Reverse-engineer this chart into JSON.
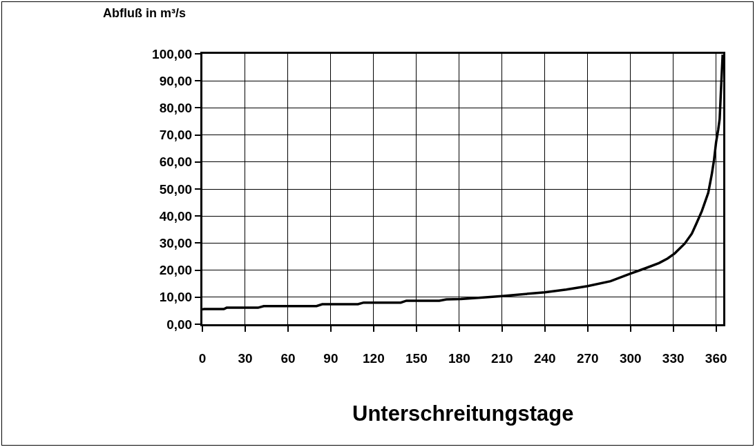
{
  "chart_data": {
    "type": "line",
    "ylabel": "Abfluß in m³/s",
    "xlabel": "Unterschreitungstage",
    "x": [
      0,
      1,
      15,
      17,
      39,
      43,
      80,
      84,
      109,
      113,
      139,
      143,
      166,
      171,
      181,
      195,
      210,
      225,
      240,
      255,
      270,
      286,
      300,
      310,
      320,
      326,
      331,
      338,
      343,
      346,
      350,
      354.5,
      357,
      358.5,
      360,
      361.5,
      362.5,
      363.3,
      364.6
    ],
    "series": [
      {
        "color": "#000000",
        "values": [
          5.5,
          5.6,
          5.6,
          6.1,
          6.1,
          6.7,
          6.7,
          7.4,
          7.4,
          8.0,
          8.0,
          8.7,
          8.7,
          9.2,
          9.3,
          9.8,
          10.4,
          11.1,
          11.8,
          12.8,
          14.1,
          15.9,
          18.7,
          20.6,
          22.6,
          24.3,
          26.2,
          29.8,
          33.5,
          37,
          41.8,
          48.6,
          55.5,
          60.5,
          67.3,
          72,
          75.9,
          85.2,
          99.7
        ]
      }
    ],
    "xlim": [
      0,
      365
    ],
    "xticks": [
      0,
      30,
      60,
      90,
      120,
      150,
      180,
      210,
      240,
      270,
      300,
      330,
      360
    ],
    "ylim": [
      0,
      100
    ],
    "yticks": [
      {
        "value": 0,
        "label": "0,00"
      },
      {
        "value": 10,
        "label": "10,00"
      },
      {
        "value": 20,
        "label": "20,00"
      },
      {
        "value": 30,
        "label": "30,00"
      },
      {
        "value": 40,
        "label": "40,00"
      },
      {
        "value": 50,
        "label": "50,00"
      },
      {
        "value": 60,
        "label": "60,00"
      },
      {
        "value": 70,
        "label": "70,00"
      },
      {
        "value": 80,
        "label": "80,00"
      },
      {
        "value": 90,
        "label": "90,00"
      },
      {
        "value": 100,
        "label": "100,00"
      }
    ],
    "grid": true,
    "marker": "none",
    "line_style": "solid"
  }
}
